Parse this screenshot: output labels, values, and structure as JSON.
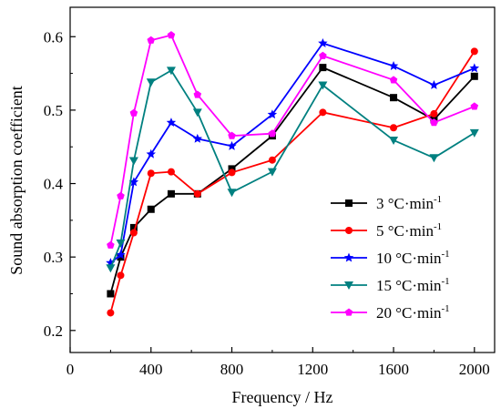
{
  "chart_data": {
    "type": "line",
    "xlabel": "Frequency / Hz",
    "ylabel": "Sound absorption coefficient",
    "xlim": [
      0,
      2100
    ],
    "ylim": [
      0.17,
      0.64
    ],
    "xticks": [
      0,
      400,
      800,
      1200,
      1600,
      2000
    ],
    "yticks": [
      0.2,
      0.3,
      0.4,
      0.5,
      0.6
    ],
    "x_tick_labels": [
      "0",
      "400",
      "800",
      "1200",
      "1600",
      "2000"
    ],
    "y_tick_labels": [
      "0.2",
      "0.3",
      "0.4",
      "0.5",
      "0.6"
    ],
    "legend_placement": "lower-right",
    "grid": false,
    "x": [
      200,
      250,
      315,
      400,
      500,
      630,
      800,
      1000,
      1250,
      1600,
      1800,
      2000
    ],
    "series": [
      {
        "name": "3 °C·min",
        "name_sup": "-1",
        "color": "#000000",
        "marker": "square",
        "values": [
          0.25,
          0.3,
          0.34,
          0.365,
          0.386,
          0.386,
          0.42,
          0.465,
          0.558,
          0.517,
          0.487,
          0.546
        ]
      },
      {
        "name": "5 °C·min",
        "name_sup": "-1",
        "color": "#ff0000",
        "marker": "circle",
        "values": [
          0.224,
          0.275,
          0.333,
          0.414,
          0.416,
          0.386,
          0.415,
          0.432,
          0.497,
          0.476,
          0.495,
          0.58
        ]
      },
      {
        "name": "10 °C·min",
        "name_sup": "-1",
        "color": "#0000ff",
        "marker": "star",
        "values": [
          0.292,
          0.303,
          0.402,
          0.44,
          0.483,
          0.461,
          0.451,
          0.494,
          0.591,
          0.56,
          0.534,
          0.557
        ]
      },
      {
        "name": "15 °C·min",
        "name_sup": "-1",
        "color": "#008080",
        "marker": "triangle-down",
        "values": [
          0.285,
          0.319,
          0.431,
          0.538,
          0.554,
          0.497,
          0.388,
          0.416,
          0.534,
          0.459,
          0.435,
          0.469
        ]
      },
      {
        "name": "20 °C·min",
        "name_sup": "-1",
        "color": "#ff00ff",
        "marker": "pentagon",
        "values": [
          0.316,
          0.383,
          0.496,
          0.595,
          0.602,
          0.521,
          0.465,
          0.468,
          0.574,
          0.541,
          0.483,
          0.505
        ]
      }
    ]
  }
}
